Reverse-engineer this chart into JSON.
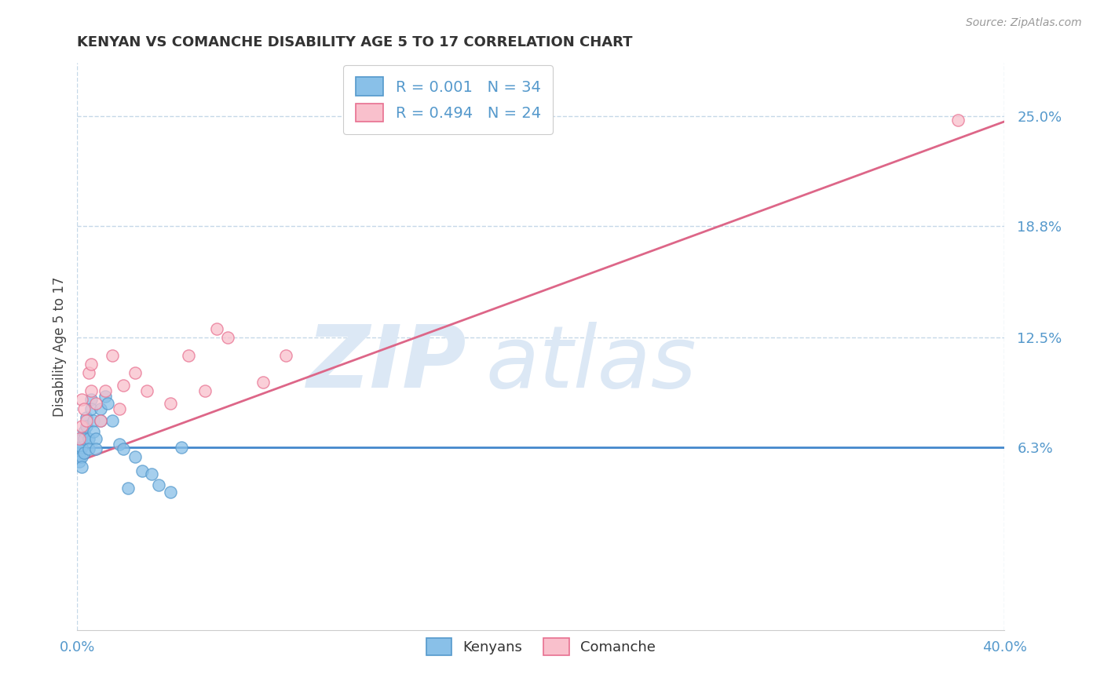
{
  "title": "KENYAN VS COMANCHE DISABILITY AGE 5 TO 17 CORRELATION CHART",
  "source_text": "Source: ZipAtlas.com",
  "xlim": [
    0.0,
    0.4
  ],
  "ylim": [
    -0.04,
    0.28
  ],
  "ytick_vals": [
    0.063,
    0.125,
    0.188,
    0.25
  ],
  "ytick_labels": [
    "6.3%",
    "12.5%",
    "18.8%",
    "25.0%"
  ],
  "xtick_vals": [
    0.0,
    0.4
  ],
  "xtick_labels": [
    "0.0%",
    "40.0%"
  ],
  "kenyan_R": 0.001,
  "kenyan_N": 34,
  "comanche_R": 0.494,
  "comanche_N": 24,
  "kenyan_color": "#89c0e8",
  "kenyan_edge": "#5599cc",
  "comanche_color": "#f9c0cc",
  "comanche_edge": "#e87090",
  "trendline_kenyan_color": "#4488cc",
  "trendline_comanche_color": "#dd6688",
  "watermark_color": "#dce8f5",
  "grid_color": "#c5d8e8",
  "background_color": "#ffffff",
  "kenyan_trendline_y_intercept": 0.063,
  "kenyan_trendline_slope": 0.0,
  "comanche_trendline_y_intercept": 0.055,
  "comanche_trendline_slope": 0.48,
  "kenyan_x": [
    0.001,
    0.001,
    0.001,
    0.002,
    0.002,
    0.002,
    0.002,
    0.003,
    0.003,
    0.003,
    0.004,
    0.004,
    0.005,
    0.005,
    0.006,
    0.006,
    0.007,
    0.007,
    0.008,
    0.008,
    0.01,
    0.01,
    0.012,
    0.013,
    0.015,
    0.018,
    0.02,
    0.022,
    0.025,
    0.028,
    0.032,
    0.035,
    0.04,
    0.045
  ],
  "kenyan_y": [
    0.063,
    0.058,
    0.055,
    0.068,
    0.063,
    0.058,
    0.052,
    0.072,
    0.068,
    0.06,
    0.08,
    0.075,
    0.068,
    0.062,
    0.09,
    0.085,
    0.078,
    0.072,
    0.068,
    0.062,
    0.085,
    0.078,
    0.092,
    0.088,
    0.078,
    0.065,
    0.062,
    0.04,
    0.058,
    0.05,
    0.048,
    0.042,
    0.038,
    0.063
  ],
  "comanche_x": [
    0.001,
    0.002,
    0.002,
    0.003,
    0.004,
    0.005,
    0.006,
    0.006,
    0.008,
    0.01,
    0.012,
    0.015,
    0.018,
    0.02,
    0.025,
    0.03,
    0.04,
    0.048,
    0.055,
    0.06,
    0.065,
    0.08,
    0.09,
    0.38
  ],
  "comanche_y": [
    0.068,
    0.075,
    0.09,
    0.085,
    0.078,
    0.105,
    0.095,
    0.11,
    0.088,
    0.078,
    0.095,
    0.115,
    0.085,
    0.098,
    0.105,
    0.095,
    0.088,
    0.115,
    0.095,
    0.13,
    0.125,
    0.1,
    0.115,
    0.248
  ]
}
